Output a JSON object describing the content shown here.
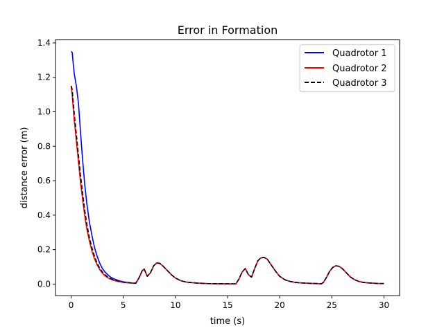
{
  "chart_data": {
    "type": "line",
    "title": "Error in Formation",
    "xlabel": "time (s)",
    "ylabel": "distance error (m)",
    "xlim": [
      -1.5,
      31.5
    ],
    "ylim": [
      -0.0675,
      1.4175
    ],
    "xticks": [
      0,
      5,
      10,
      15,
      20,
      25,
      30
    ],
    "xtick_labels": [
      "0",
      "5",
      "10",
      "15",
      "20",
      "25",
      "30"
    ],
    "yticks": [
      0.0,
      0.2,
      0.4,
      0.6,
      0.8,
      1.0,
      1.2,
      1.4
    ],
    "ytick_labels": [
      "0.0",
      "0.2",
      "0.4",
      "0.6",
      "0.8",
      "1.0",
      "1.2",
      "1.4"
    ],
    "grid": false,
    "legend_position": "upper right",
    "series": [
      {
        "name": "Quadrotor 1",
        "color": "#0000ff",
        "style": "solid",
        "x": [
          0,
          0.1,
          0.2,
          0.3,
          0.5,
          0.7,
          0.9,
          1.1,
          1.3,
          1.5,
          1.75,
          2.0,
          2.25,
          2.5,
          2.75,
          3.0,
          3.25,
          3.5,
          3.75,
          4.0,
          4.5,
          5.0,
          5.5,
          6.0,
          6.2,
          6.5,
          6.8,
          7.0,
          7.3,
          7.6,
          7.9,
          8.2,
          8.5,
          8.8,
          9.2,
          9.6,
          10.0,
          10.5,
          11.0,
          12.0,
          13.0,
          14.0,
          15.0,
          15.8,
          16.1,
          16.4,
          16.7,
          17.0,
          17.3,
          17.6,
          17.9,
          18.2,
          18.5,
          18.8,
          19.2,
          19.6,
          20.0,
          20.5,
          21.0,
          21.5,
          22.0,
          23.0,
          24.0,
          24.2,
          24.5,
          24.8,
          25.1,
          25.4,
          25.7,
          26.0,
          26.4,
          26.8,
          27.2,
          27.6,
          28.0,
          28.5,
          29.0,
          29.5,
          30.0
        ],
        "y": [
          1.35,
          1.345,
          1.28,
          1.22,
          1.15,
          1.05,
          0.88,
          0.72,
          0.58,
          0.47,
          0.36,
          0.28,
          0.21,
          0.16,
          0.12,
          0.09,
          0.07,
          0.055,
          0.042,
          0.033,
          0.021,
          0.013,
          0.009,
          0.006,
          0.005,
          0.035,
          0.075,
          0.088,
          0.045,
          0.065,
          0.105,
          0.123,
          0.12,
          0.105,
          0.08,
          0.055,
          0.035,
          0.02,
          0.012,
          0.006,
          0.003,
          0.002,
          0.0015,
          0.001,
          0.03,
          0.07,
          0.09,
          0.055,
          0.04,
          0.09,
          0.135,
          0.152,
          0.155,
          0.145,
          0.11,
          0.075,
          0.045,
          0.025,
          0.015,
          0.01,
          0.007,
          0.004,
          0.002,
          0.01,
          0.04,
          0.075,
          0.097,
          0.106,
          0.103,
          0.09,
          0.065,
          0.04,
          0.025,
          0.015,
          0.01,
          0.007,
          0.005,
          0.003,
          0.003
        ]
      },
      {
        "name": "Quadrotor 2",
        "color": "#ff0000",
        "style": "solid",
        "x": [
          0,
          0.1,
          0.2,
          0.3,
          0.5,
          0.7,
          0.9,
          1.1,
          1.3,
          1.5,
          1.75,
          2.0,
          2.25,
          2.5,
          2.75,
          3.0,
          3.25,
          3.5,
          3.75,
          4.0,
          4.5,
          5.0,
          5.5,
          6.0,
          6.2,
          6.5,
          6.8,
          7.0,
          7.3,
          7.6,
          7.9,
          8.2,
          8.5,
          8.8,
          9.2,
          9.6,
          10.0,
          10.5,
          11.0,
          12.0,
          13.0,
          14.0,
          15.0,
          15.8,
          16.1,
          16.4,
          16.7,
          17.0,
          17.3,
          17.6,
          17.9,
          18.2,
          18.5,
          18.8,
          19.2,
          19.6,
          20.0,
          20.5,
          21.0,
          21.5,
          22.0,
          23.0,
          24.0,
          24.2,
          24.5,
          24.8,
          25.1,
          25.4,
          25.7,
          26.0,
          26.4,
          26.8,
          27.2,
          27.6,
          28.0,
          28.5,
          29.0,
          29.5,
          30.0
        ],
        "y": [
          1.15,
          1.1,
          1.02,
          0.95,
          0.83,
          0.71,
          0.59,
          0.49,
          0.4,
          0.32,
          0.25,
          0.19,
          0.145,
          0.11,
          0.083,
          0.063,
          0.048,
          0.037,
          0.029,
          0.023,
          0.015,
          0.01,
          0.007,
          0.005,
          0.005,
          0.035,
          0.075,
          0.088,
          0.045,
          0.065,
          0.105,
          0.123,
          0.12,
          0.105,
          0.08,
          0.055,
          0.035,
          0.02,
          0.012,
          0.006,
          0.003,
          0.002,
          0.0015,
          0.001,
          0.03,
          0.07,
          0.09,
          0.055,
          0.04,
          0.09,
          0.135,
          0.152,
          0.155,
          0.145,
          0.11,
          0.075,
          0.045,
          0.025,
          0.015,
          0.01,
          0.007,
          0.004,
          0.002,
          0.01,
          0.04,
          0.075,
          0.097,
          0.106,
          0.103,
          0.09,
          0.065,
          0.04,
          0.025,
          0.015,
          0.01,
          0.007,
          0.005,
          0.003,
          0.003
        ]
      },
      {
        "name": "Quadrotor 3",
        "color": "#000000",
        "style": "dashed",
        "x": [
          0,
          0.1,
          0.2,
          0.3,
          0.5,
          0.7,
          0.9,
          1.1,
          1.3,
          1.5,
          1.75,
          2.0,
          2.25,
          2.5,
          2.75,
          3.0,
          3.25,
          3.5,
          3.75,
          4.0,
          4.5,
          5.0,
          5.5,
          6.0,
          6.2,
          6.5,
          6.8,
          7.0,
          7.3,
          7.6,
          7.9,
          8.2,
          8.5,
          8.8,
          9.2,
          9.6,
          10.0,
          10.5,
          11.0,
          12.0,
          13.0,
          14.0,
          15.0,
          15.8,
          16.1,
          16.4,
          16.7,
          17.0,
          17.3,
          17.6,
          17.9,
          18.2,
          18.5,
          18.8,
          19.2,
          19.6,
          20.0,
          20.5,
          21.0,
          21.5,
          22.0,
          23.0,
          24.0,
          24.2,
          24.5,
          24.8,
          25.1,
          25.4,
          25.7,
          26.0,
          26.4,
          26.8,
          27.2,
          27.6,
          28.0,
          28.5,
          29.0,
          29.5,
          30.0
        ],
        "y": [
          1.15,
          1.13,
          1.06,
          0.99,
          0.87,
          0.75,
          0.63,
          0.53,
          0.43,
          0.35,
          0.27,
          0.21,
          0.16,
          0.12,
          0.092,
          0.07,
          0.054,
          0.042,
          0.033,
          0.026,
          0.017,
          0.011,
          0.008,
          0.005,
          0.005,
          0.035,
          0.075,
          0.088,
          0.045,
          0.065,
          0.105,
          0.123,
          0.12,
          0.105,
          0.08,
          0.055,
          0.035,
          0.02,
          0.012,
          0.006,
          0.003,
          0.002,
          0.0015,
          0.001,
          0.03,
          0.07,
          0.09,
          0.055,
          0.04,
          0.09,
          0.135,
          0.152,
          0.155,
          0.145,
          0.11,
          0.075,
          0.045,
          0.025,
          0.015,
          0.01,
          0.007,
          0.004,
          0.002,
          0.01,
          0.04,
          0.075,
          0.097,
          0.106,
          0.103,
          0.09,
          0.065,
          0.04,
          0.025,
          0.015,
          0.01,
          0.007,
          0.005,
          0.003,
          0.003
        ]
      }
    ]
  }
}
